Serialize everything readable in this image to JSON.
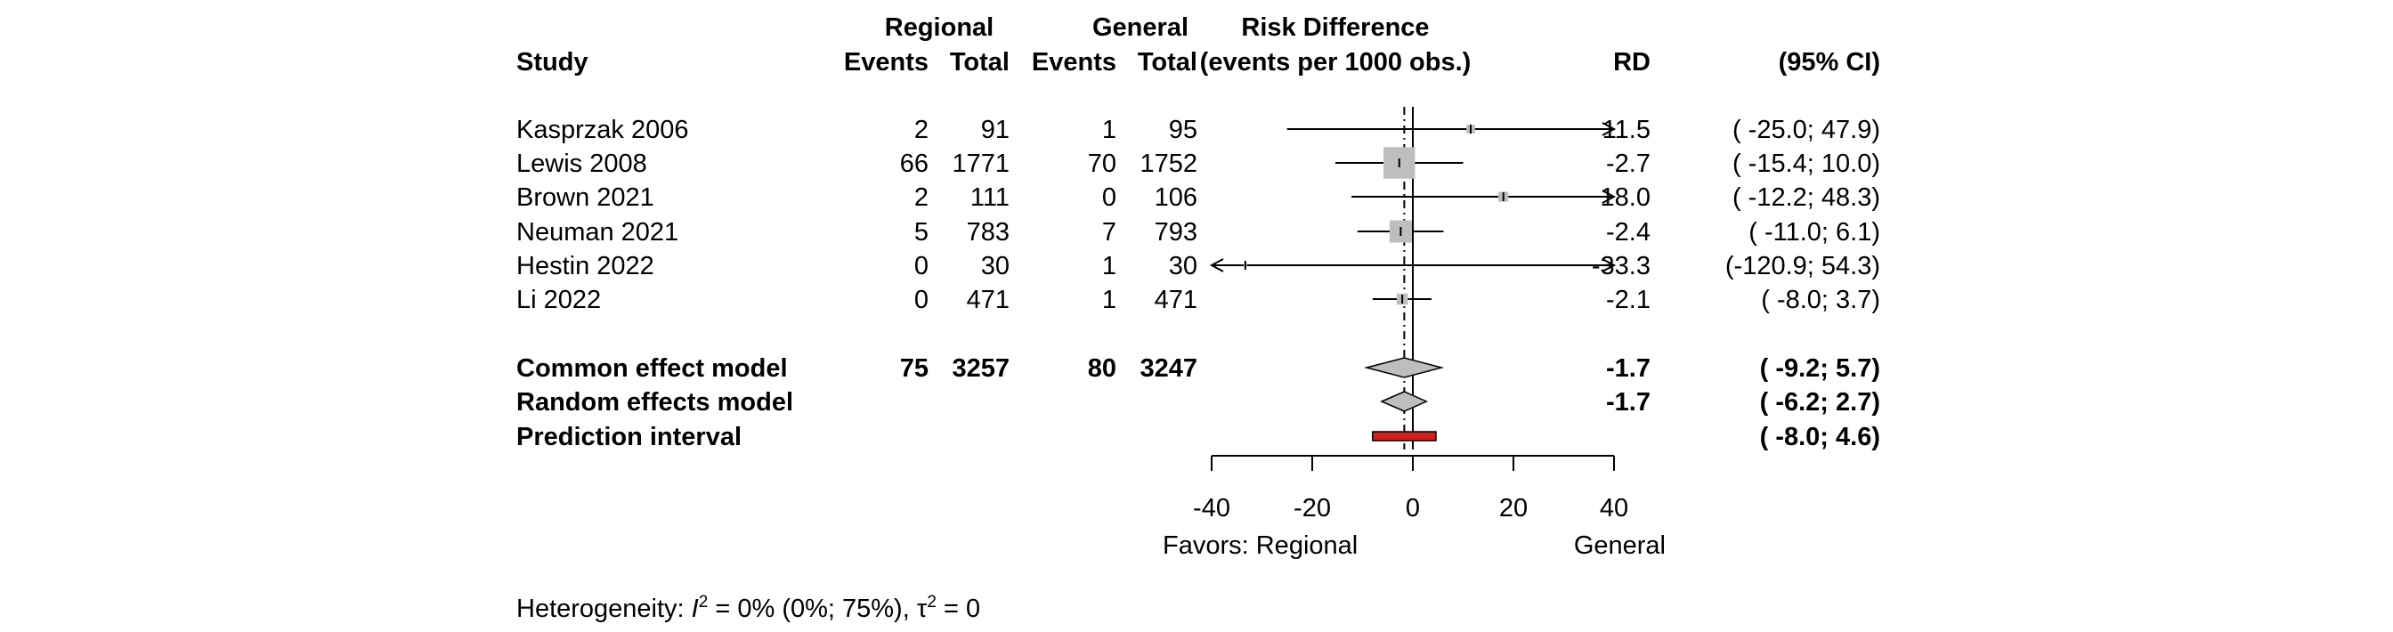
{
  "chart_data": {
    "type": "forest",
    "headers": {
      "group1": "Regional",
      "group2": "General",
      "study": "Study",
      "events1": "Events",
      "total1": "Total",
      "events2": "Events",
      "total2": "Total",
      "effect_line1": "Risk Difference",
      "effect_line2": "(events per 1000 obs.)",
      "rd": "RD",
      "ci": "(95% CI)"
    },
    "studies": [
      {
        "name": "Kasprzak 2006",
        "events1": "2",
        "total1": "91",
        "events2": "1",
        "total2": "95",
        "rd": 11.5,
        "lo": -25.0,
        "hi": 47.9,
        "weight": 0.03,
        "rd_text": "11.5",
        "ci_text": "( -25.0; 47.9)"
      },
      {
        "name": "Lewis 2008",
        "events1": "66",
        "total1": "1771",
        "events2": "70",
        "total2": "1752",
        "rd": -2.7,
        "lo": -15.4,
        "hi": 10.0,
        "weight": 0.4,
        "rd_text": "-2.7",
        "ci_text": "( -15.4; 10.0)"
      },
      {
        "name": "Brown 2021",
        "events1": "2",
        "total1": "111",
        "events2": "0",
        "total2": "106",
        "rd": 18.0,
        "lo": -12.2,
        "hi": 48.3,
        "weight": 0.04,
        "rd_text": "18.0",
        "ci_text": "( -12.2; 48.3)"
      },
      {
        "name": "Neuman 2021",
        "events1": "5",
        "total1": "783",
        "events2": "7",
        "total2": "793",
        "rd": -2.4,
        "lo": -11.0,
        "hi": 6.1,
        "weight": 0.2,
        "rd_text": "-2.4",
        "ci_text": "( -11.0;  6.1)"
      },
      {
        "name": "Hestin 2022",
        "events1": "0",
        "total1": "30",
        "events2": "1",
        "total2": "30",
        "rd": -33.3,
        "lo": -120.9,
        "hi": 54.3,
        "weight": 0.005,
        "rd_text": "-33.3",
        "ci_text": "(-120.9; 54.3)"
      },
      {
        "name": "Li 2022",
        "events1": "0",
        "total1": "471",
        "events2": "1",
        "total2": "471",
        "rd": -2.1,
        "lo": -8.0,
        "hi": 3.7,
        "weight": 0.05,
        "rd_text": "-2.1",
        "ci_text": "(  -8.0;  3.7)"
      }
    ],
    "common": {
      "name": "Common effect model",
      "events1": "75",
      "total1": "3257",
      "events2": "80",
      "total2": "3247",
      "rd": -1.7,
      "lo": -9.2,
      "hi": 5.7,
      "rd_text": "-1.7",
      "ci_text": "(  -9.2;  5.7)"
    },
    "random": {
      "name": "Random effects model",
      "rd": -1.7,
      "lo": -6.2,
      "hi": 2.7,
      "rd_text": "-1.7",
      "ci_text": "(  -6.2;  2.7)"
    },
    "prediction": {
      "name": "Prediction interval",
      "lo": -8.0,
      "hi": 4.6,
      "ci_text": "(  -8.0;  4.6)"
    },
    "axis": {
      "range": [
        -40,
        40
      ],
      "ticks": [
        -40,
        -20,
        0,
        20,
        40
      ],
      "tick_labels": [
        "-40",
        "-20",
        "0",
        "20",
        "40"
      ]
    },
    "favors_left": "Favors: Regional",
    "favors_right": "General",
    "heterogeneity": {
      "prefix": "Heterogeneity: ",
      "i_symbol": "I",
      "i_sup": "2",
      "i_value": " = 0% (0%; 75%), ",
      "tau_symbol": "τ",
      "tau_sup": "2",
      "tau_value": " = 0"
    },
    "colors": {
      "square": "#bebebe",
      "diamond": "#bebebe",
      "prediction": "#d61f1f",
      "line": "#000000"
    }
  }
}
